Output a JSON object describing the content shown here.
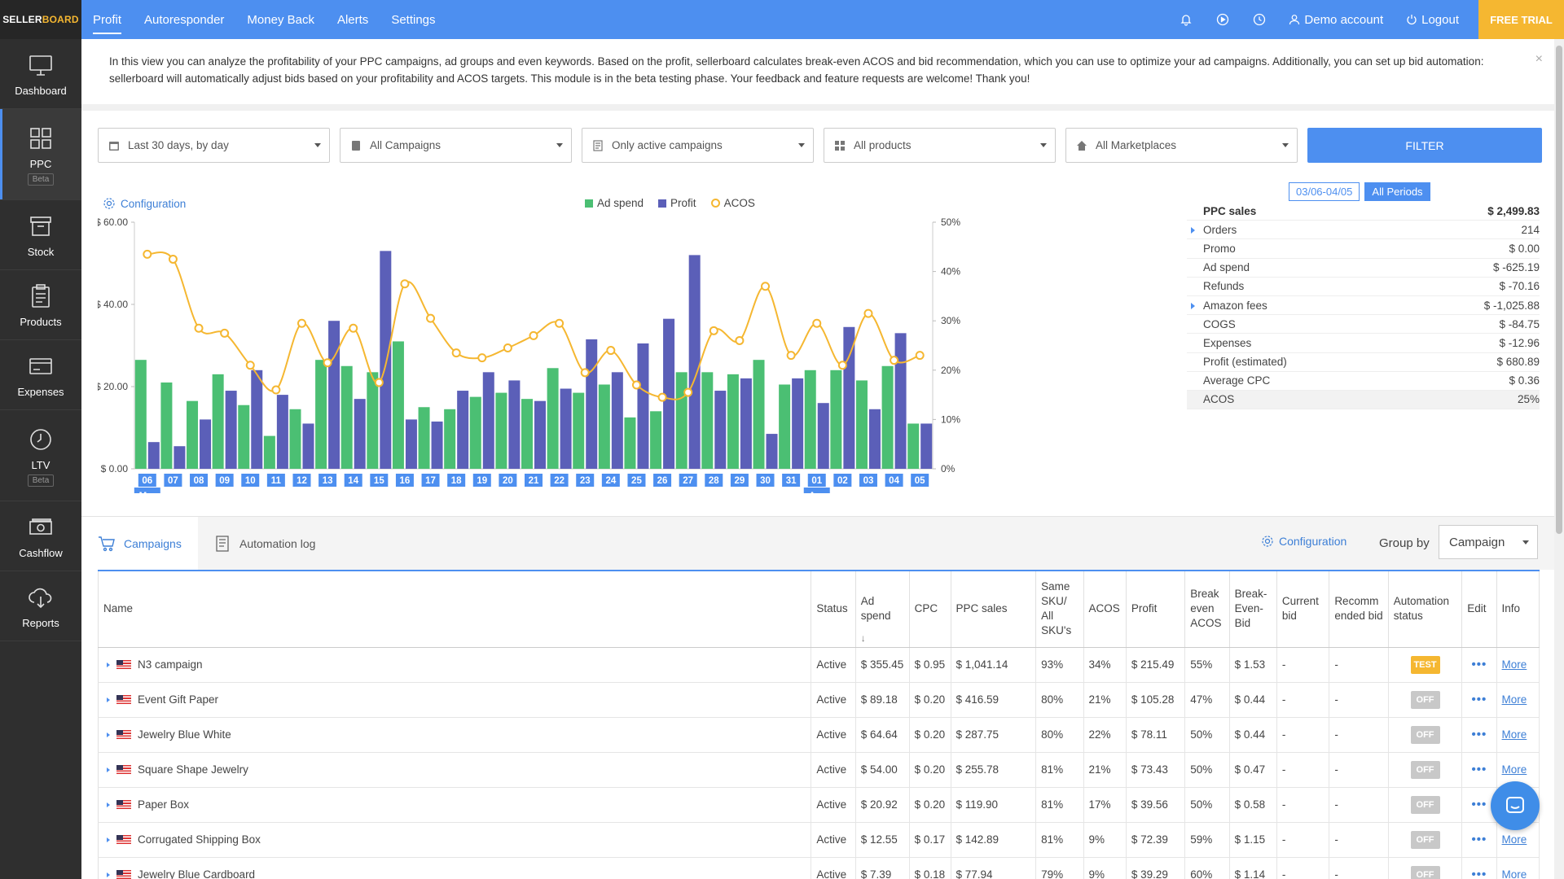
{
  "brand": {
    "part1": "SELLER",
    "part2": "BOARD"
  },
  "sidebar": {
    "items": [
      {
        "label": "Dashboard",
        "icon": "monitor-icon"
      },
      {
        "label": "PPC",
        "icon": "grid-icon",
        "badge": "Beta"
      },
      {
        "label": "Stock",
        "icon": "box-icon"
      },
      {
        "label": "Products",
        "icon": "clipboard-icon"
      },
      {
        "label": "Expenses",
        "icon": "card-icon"
      },
      {
        "label": "LTV",
        "icon": "clock-icon",
        "badge": "Beta"
      },
      {
        "label": "Cashflow",
        "icon": "cash-icon"
      },
      {
        "label": "Reports",
        "icon": "cloud-download-icon"
      }
    ]
  },
  "topnav": {
    "items": [
      "Profit",
      "Autoresponder",
      "Money Back",
      "Alerts",
      "Settings"
    ],
    "demo": "Demo account",
    "logout": "Logout",
    "free_trial": "FREE TRIAL"
  },
  "banner": {
    "text": "In this view you can analyze the profitability of your PPC campaigns, ad groups and even keywords. Based on the profit, sellerboard calculates break-even ACOS and bid recommendation, which you can use to optimize your ad campaigns. Additionally, you can set up bid automation: sellerboard will automatically adjust bids based on your profitability and ACOS targets. This module is in the beta testing phase. Your feedback and feature requests are welcome! Thank you!",
    "close": "×"
  },
  "filters": {
    "period": "Last 30 days, by day",
    "campaigns": "All Campaigns",
    "active": "Only active campaigns",
    "products": "All products",
    "marketplaces": "All Marketplaces",
    "button": "FILTER"
  },
  "configuration": "Configuration",
  "legend": {
    "ad_spend": "Ad spend",
    "profit": "Profit",
    "acos": "ACOS"
  },
  "colors": {
    "ad_spend": "#4bbf73",
    "profit": "#5b5fb8",
    "acos": "#f5b731",
    "accent": "#4d8ff0"
  },
  "chart_data": {
    "type": "bar",
    "categories": [
      "06",
      "07",
      "08",
      "09",
      "10",
      "11",
      "12",
      "13",
      "14",
      "15",
      "16",
      "17",
      "18",
      "19",
      "20",
      "21",
      "22",
      "23",
      "24",
      "25",
      "26",
      "27",
      "28",
      "29",
      "30",
      "31",
      "01",
      "02",
      "03",
      "04",
      "05"
    ],
    "month_labels": [
      {
        "index": 0,
        "month": "Mar",
        "year": "2021"
      },
      {
        "index": 26,
        "month": "Apr",
        "year": "2021"
      }
    ],
    "y_left_ticks": [
      "$ 0.00",
      "$ 20.00",
      "$ 40.00",
      "$ 60.00"
    ],
    "y_left_range": [
      0,
      60
    ],
    "y_right_ticks": [
      "0%",
      "10%",
      "20%",
      "30%",
      "40%",
      "50%"
    ],
    "y_right_range": [
      0,
      50
    ],
    "series": [
      {
        "name": "Ad spend",
        "values": [
          26.5,
          21,
          16.5,
          23,
          15.5,
          8,
          14.5,
          26.5,
          25,
          23.5,
          31,
          15,
          14.5,
          17.5,
          18.5,
          17,
          24.5,
          18.5,
          20.5,
          12.5,
          14,
          23.5,
          23.5,
          23,
          26.5,
          20.5,
          24,
          24,
          21.5,
          25,
          11
        ]
      },
      {
        "name": "Profit",
        "values": [
          6.5,
          5.5,
          12,
          19,
          24,
          18,
          11,
          36,
          17,
          53,
          12,
          11.5,
          19,
          23.5,
          21.5,
          16.5,
          19.5,
          31.5,
          23.5,
          30.5,
          36.5,
          52,
          19,
          22,
          8.5,
          22,
          16,
          34.5,
          14.5,
          33,
          11
        ]
      },
      {
        "name": "ACOS",
        "axis": "right",
        "values": [
          43.5,
          42.5,
          28.5,
          27.5,
          21,
          16,
          29.5,
          21.5,
          28.5,
          17.5,
          37.5,
          30.5,
          23.5,
          22.5,
          24.5,
          27,
          29.5,
          19.5,
          24,
          17,
          14.5,
          15.5,
          28,
          26,
          37,
          23,
          29.5,
          21,
          31.5,
          22,
          23
        ]
      }
    ]
  },
  "period_buttons": {
    "range": "03/06-04/05",
    "all": "All Periods"
  },
  "summary": [
    {
      "label": "PPC sales",
      "value": "$ 2,499.83",
      "head": true
    },
    {
      "label": "Orders",
      "value": "214",
      "expand": true
    },
    {
      "label": "Promo",
      "value": "$ 0.00"
    },
    {
      "label": "Ad spend",
      "value": "$ -625.19"
    },
    {
      "label": "Refunds",
      "value": "$ -70.16"
    },
    {
      "label": "Amazon fees",
      "value": "$ -1,025.88",
      "expand": true
    },
    {
      "label": "COGS",
      "value": "$ -84.75"
    },
    {
      "label": "Expenses",
      "value": "$ -12.96"
    },
    {
      "label": "Profit (estimated)",
      "value": "$ 680.89"
    },
    {
      "label": "Average CPC",
      "value": "$ 0.36"
    },
    {
      "label": "ACOS",
      "value": "25%",
      "last": true
    }
  ],
  "tabs": {
    "campaigns": "Campaigns",
    "automation_log": "Automation log"
  },
  "group_by": {
    "label": "Group by",
    "value": "Campaign"
  },
  "table": {
    "headers": [
      "Name",
      "Status",
      "Ad spend",
      "CPC",
      "PPC sales",
      "Same SKU/ All SKU's",
      "ACOS",
      "Profit",
      "Break even ACOS",
      "Break-Even-Bid",
      "Current bid",
      "Recomm ended bid",
      "Automation status",
      "Edit",
      "Info"
    ],
    "more_label": "More",
    "dots": "•••",
    "rows": [
      {
        "name": "N3 campaign",
        "status": "Active",
        "ad_spend": "$ 355.45",
        "cpc": "$ 0.95",
        "ppc_sales": "$ 1,041.14",
        "same_sku": "93%",
        "acos": "34%",
        "profit": "$ 215.49",
        "be_acos": "55%",
        "be_bid": "$ 1.53",
        "current_bid": "-",
        "rec_bid": "-",
        "automation": "TEST"
      },
      {
        "name": "Event Gift Paper",
        "status": "Active",
        "ad_spend": "$ 89.18",
        "cpc": "$ 0.20",
        "ppc_sales": "$ 416.59",
        "same_sku": "80%",
        "acos": "21%",
        "profit": "$ 105.28",
        "be_acos": "47%",
        "be_bid": "$ 0.44",
        "current_bid": "-",
        "rec_bid": "-",
        "automation": "OFF"
      },
      {
        "name": "Jewelry Blue White",
        "status": "Active",
        "ad_spend": "$ 64.64",
        "cpc": "$ 0.20",
        "ppc_sales": "$ 287.75",
        "same_sku": "80%",
        "acos": "22%",
        "profit": "$ 78.11",
        "be_acos": "50%",
        "be_bid": "$ 0.44",
        "current_bid": "-",
        "rec_bid": "-",
        "automation": "OFF"
      },
      {
        "name": "Square Shape Jewelry",
        "status": "Active",
        "ad_spend": "$ 54.00",
        "cpc": "$ 0.20",
        "ppc_sales": "$ 255.78",
        "same_sku": "81%",
        "acos": "21%",
        "profit": "$ 73.43",
        "be_acos": "50%",
        "be_bid": "$ 0.47",
        "current_bid": "-",
        "rec_bid": "-",
        "automation": "OFF"
      },
      {
        "name": "Paper Box",
        "status": "Active",
        "ad_spend": "$ 20.92",
        "cpc": "$ 0.20",
        "ppc_sales": "$ 119.90",
        "same_sku": "81%",
        "acos": "17%",
        "profit": "$ 39.56",
        "be_acos": "50%",
        "be_bid": "$ 0.58",
        "current_bid": "-",
        "rec_bid": "-",
        "automation": "OFF"
      },
      {
        "name": "Corrugated Shipping Box",
        "status": "Active",
        "ad_spend": "$ 12.55",
        "cpc": "$ 0.17",
        "ppc_sales": "$ 142.89",
        "same_sku": "81%",
        "acos": "9%",
        "profit": "$ 72.39",
        "be_acos": "59%",
        "be_bid": "$ 1.15",
        "current_bid": "-",
        "rec_bid": "-",
        "automation": "OFF"
      },
      {
        "name": "Jewelry Blue Cardboard",
        "status": "Active",
        "ad_spend": "$ 7.39",
        "cpc": "$ 0.18",
        "ppc_sales": "$ 77.94",
        "same_sku": "79%",
        "acos": "9%",
        "profit": "$ 39.29",
        "be_acos": "60%",
        "be_bid": "$ 1.14",
        "current_bid": "-",
        "rec_bid": "-",
        "automation": "OFF"
      }
    ]
  }
}
